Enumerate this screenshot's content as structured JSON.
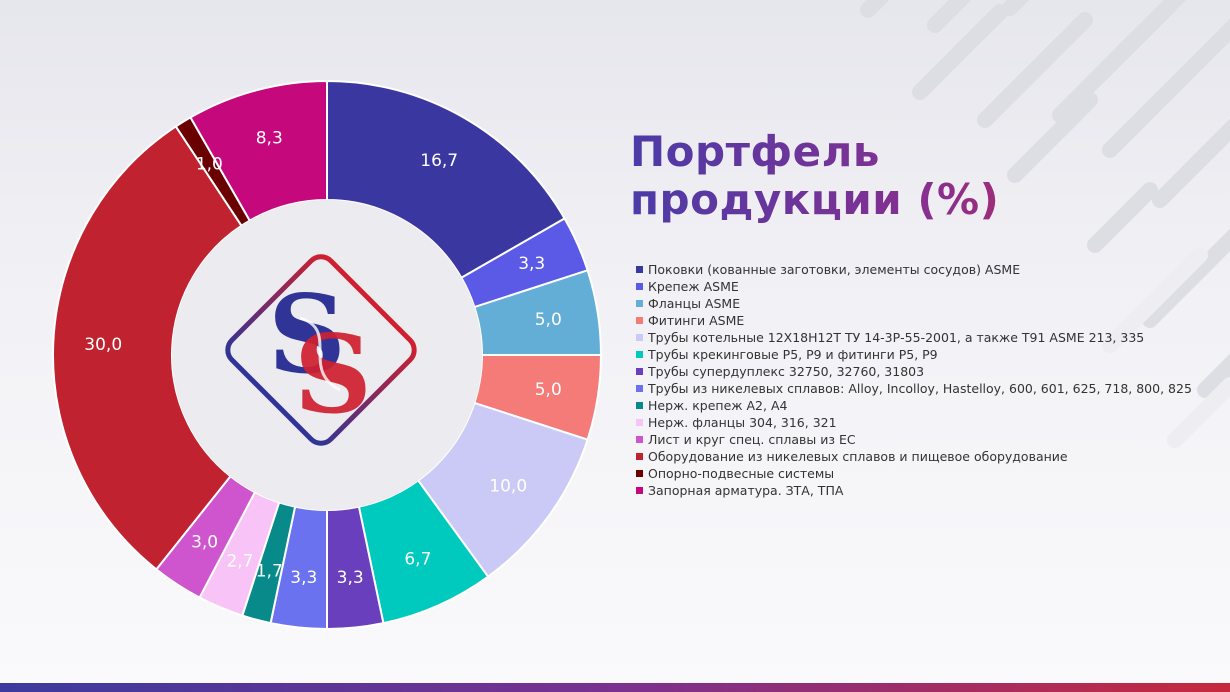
{
  "title_lines": [
    "Портфель",
    "продукции (%)"
  ],
  "chart_data": {
    "type": "pie",
    "variant": "donut",
    "title": "Портфель продукции (%)",
    "legend_position": "right",
    "slices": [
      {
        "label": "Поковки (кованные заготовки, элементы сосудов) ASME",
        "value": 16.7,
        "value_label": "16,7",
        "color": "#3a37a0"
      },
      {
        "label": "Крепеж ASME",
        "value": 3.3,
        "value_label": "3,3",
        "color": "#5a5ae6"
      },
      {
        "label": "Фланцы ASME",
        "value": 5.0,
        "value_label": "5,0",
        "color": "#62aed6"
      },
      {
        "label": "Фитинги ASME",
        "value": 5.0,
        "value_label": "5,0",
        "color": "#f47b78"
      },
      {
        "label": "Трубы котельные 12Х18Н12Т ТУ 14-3Р-55-2001, а также Т91 ASME 213, 335",
        "value": 10.0,
        "value_label": "10,0",
        "color": "#cbcaf6"
      },
      {
        "label": "Трубы крекинговые Р5, Р9 и фитинги Р5, Р9",
        "value": 6.7,
        "value_label": "6,7",
        "color": "#00c9bd"
      },
      {
        "label": "Трубы супердуплекс 32750, 32760, 31803",
        "value": 3.3,
        "value_label": "3,3",
        "color": "#6a3fbe"
      },
      {
        "label": "Трубы из никелевых сплавов: Alloy, Incolloy, Hastelloy, 600, 601, 625,  718, 800, 825",
        "value": 3.3,
        "value_label": "3,3",
        "color": "#6a72ef"
      },
      {
        "label": "Нерж. крепеж А2, А4",
        "value": 1.7,
        "value_label": "1,7",
        "color": "#098a8a"
      },
      {
        "label": "Нерж. фланцы 304, 316, 321",
        "value": 2.7,
        "value_label": "2,7",
        "color": "#f8c3f6"
      },
      {
        "label": "Лист и круг спец. сплавы из ЕС",
        "value": 3.0,
        "value_label": "3,0",
        "color": "#cf55cf"
      },
      {
        "label": "Оборудование  из никелевых сплавов и пищевое оборудование",
        "value": 30.0,
        "value_label": "30,0",
        "color": "#c0232f"
      },
      {
        "label": "Опорно-подвесные системы",
        "value": 1.0,
        "value_label": "1,0",
        "color": "#6b0000"
      },
      {
        "label": "Запорная арматура. ЗТА, ТПА",
        "value": 8.3,
        "value_label": "8,3",
        "color": "#c5097d"
      }
    ]
  },
  "colors": {
    "title_gradient_start": "#4b3ba8",
    "title_gradient_end": "#d62a3c",
    "logo_blue": "#2f3496",
    "logo_red": "#d0202f",
    "inner_disc": "#ebebf0"
  },
  "icons": {
    "logo": "ss-diamond-logo-icon"
  }
}
